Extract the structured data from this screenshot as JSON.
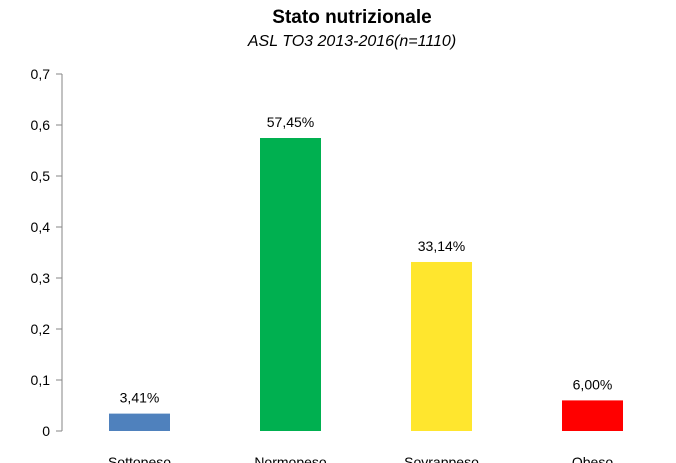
{
  "chart_data": {
    "type": "bar",
    "title": "Stato nutrizionale",
    "subtitle": "ASL TO3 2013-2016(n=1110)",
    "categories": [
      "Sottopeso",
      "Normopeso",
      "Sovrappeso",
      "Obeso"
    ],
    "values": [
      0.0341,
      0.5745,
      0.3314,
      0.06
    ],
    "data_labels": [
      "3,41%",
      "57,45%",
      "33,14%",
      "6,00%"
    ],
    "colors": [
      "#4F81BD",
      "#00B050",
      "#FFE62E",
      "#FF0000"
    ],
    "ylim": [
      0,
      0.7
    ],
    "yticks": [
      "0",
      "0,1",
      "0,2",
      "0,3",
      "0,4",
      "0,5",
      "0,6",
      "0,7"
    ],
    "xlabel": "",
    "ylabel": "",
    "grid": false,
    "legend": "none"
  }
}
